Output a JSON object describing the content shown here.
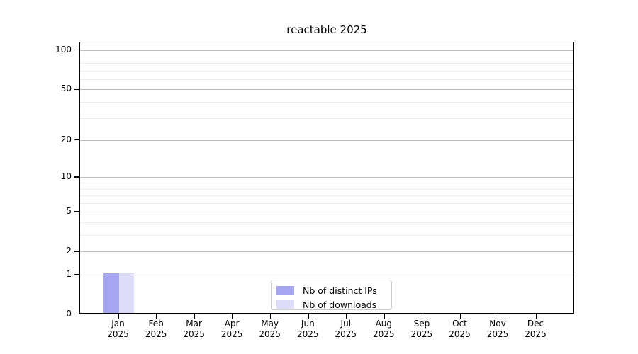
{
  "chart_data": {
    "type": "bar",
    "title": "reactable 2025",
    "categories": [
      "Jan",
      "Feb",
      "Mar",
      "Apr",
      "May",
      "Jun",
      "Jul",
      "Aug",
      "Sep",
      "Oct",
      "Nov",
      "Dec"
    ],
    "category_year": "2025",
    "series": [
      {
        "name": "Nb of distinct IPs",
        "color": "#a6a6f0",
        "values": [
          1,
          0,
          0,
          0,
          0,
          0,
          0,
          0,
          0,
          0,
          0,
          0
        ]
      },
      {
        "name": "Nb of downloads",
        "color": "#dcdcf8",
        "values": [
          1,
          0,
          0,
          0,
          0,
          0,
          0,
          0,
          0,
          0,
          0,
          0
        ]
      }
    ],
    "xlabel": "",
    "ylabel": "",
    "y_scale": "log1p",
    "y_ticks_major": [
      0,
      1,
      2,
      5,
      10,
      20,
      50,
      100
    ],
    "y_ticks_minor": [
      3,
      4,
      6,
      7,
      8,
      9,
      30,
      40,
      60,
      70,
      80,
      90
    ],
    "ylim": [
      0,
      115
    ],
    "grid": "horizontal",
    "legend_position": "lower-center-inside"
  },
  "colors": {
    "grid_major": "#bcbcbc",
    "grid_minor": "#ececec",
    "spine": "#000000",
    "text": "#000000",
    "legend_border": "#cccccc",
    "background": "#ffffff"
  }
}
